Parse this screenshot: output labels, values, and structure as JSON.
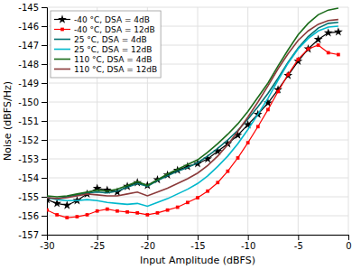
{
  "chart_data": {
    "type": "line",
    "x_label": "Input Amplitude (dBFS)",
    "y_label": "Noise (dBFS/Hz)",
    "x": [
      -30,
      -29,
      -28,
      -27,
      -26,
      -25,
      -24,
      -23,
      -22,
      -21,
      -20,
      -19,
      -18,
      -17,
      -16,
      -15,
      -14,
      -13,
      -12,
      -11,
      -10,
      -9,
      -8,
      -7,
      -6,
      -5,
      -4,
      -3,
      -2,
      -1
    ],
    "xlim": [
      -30,
      0
    ],
    "ylim": [
      -157,
      -145
    ],
    "xticks": [
      -30,
      -25,
      -20,
      -15,
      -10,
      -5,
      0
    ],
    "yticks": [
      -157,
      -156,
      -155,
      -154,
      -153,
      -152,
      -151,
      -150,
      -149,
      -148,
      -147,
      -146,
      -145
    ],
    "grid": true,
    "legend": "upper left",
    "series": [
      {
        "name": "-40 °C, DSA = 4dB",
        "color": "#000000",
        "marker": "star",
        "line_style": "solid",
        "values": [
          -155.15,
          -155.35,
          -155.45,
          -155.2,
          -154.85,
          -154.55,
          -154.65,
          -154.75,
          -154.45,
          -154.25,
          -154.4,
          -154.1,
          -153.85,
          -153.6,
          -153.4,
          -153.25,
          -153.0,
          -152.6,
          -152.2,
          -151.75,
          -151.2,
          -150.65,
          -150.05,
          -149.35,
          -148.6,
          -147.85,
          -147.2,
          -146.7,
          -146.35,
          -146.3
        ]
      },
      {
        "name": "-40 °C, DSA = 12dB",
        "color": "#ff0000",
        "marker": "square",
        "line_style": "solid",
        "values": [
          -155.7,
          -155.95,
          -156.1,
          -156.05,
          -155.95,
          -155.75,
          -155.65,
          -155.75,
          -155.8,
          -155.85,
          -155.95,
          -155.85,
          -155.7,
          -155.55,
          -155.3,
          -155.05,
          -154.7,
          -154.25,
          -153.65,
          -152.95,
          -152.15,
          -151.3,
          -150.4,
          -149.45,
          -148.55,
          -147.75,
          -147.2,
          -147.0,
          -147.4,
          -147.5
        ]
      },
      {
        "name": "25 °C, DSA = 4dB",
        "color": "#007070",
        "line_style": "solid",
        "values": [
          -155.05,
          -155.1,
          -155.0,
          -154.9,
          -154.8,
          -154.75,
          -154.8,
          -154.7,
          -154.5,
          -154.3,
          -154.45,
          -154.15,
          -153.9,
          -153.65,
          -153.45,
          -153.2,
          -152.85,
          -152.45,
          -152.0,
          -151.5,
          -150.9,
          -150.25,
          -149.55,
          -148.75,
          -147.9,
          -147.15,
          -146.55,
          -146.1,
          -145.85,
          -145.8
        ]
      },
      {
        "name": "25 °C, DSA = 12dB",
        "color": "#00b8cc",
        "line_style": "solid",
        "values": [
          -155.05,
          -155.15,
          -155.2,
          -155.2,
          -155.15,
          -155.2,
          -155.3,
          -155.35,
          -155.4,
          -155.35,
          -155.5,
          -155.3,
          -155.1,
          -154.85,
          -154.6,
          -154.3,
          -153.9,
          -153.4,
          -152.85,
          -152.2,
          -151.45,
          -150.65,
          -149.8,
          -148.85,
          -147.95,
          -147.2,
          -146.65,
          -146.25,
          -146.05,
          -146.0
        ]
      },
      {
        "name": "110 °C, DSA = 4dB",
        "color": "#1a6b1a",
        "line_style": "solid",
        "values": [
          -154.95,
          -155.0,
          -154.95,
          -154.85,
          -154.75,
          -154.65,
          -154.7,
          -154.6,
          -154.4,
          -154.2,
          -154.4,
          -154.1,
          -153.8,
          -153.55,
          -153.3,
          -153.05,
          -152.65,
          -152.2,
          -151.7,
          -151.15,
          -150.5,
          -149.75,
          -149.0,
          -148.1,
          -147.25,
          -146.45,
          -145.85,
          -145.4,
          -145.15,
          -145.05
        ]
      },
      {
        "name": "110 °C, DSA = 12dB",
        "color": "#8b3a3a",
        "line_style": "solid",
        "values": [
          -155.05,
          -155.1,
          -155.05,
          -154.95,
          -154.85,
          -154.9,
          -154.95,
          -154.95,
          -154.85,
          -154.75,
          -154.95,
          -154.75,
          -154.55,
          -154.3,
          -154.05,
          -153.75,
          -153.35,
          -152.85,
          -152.25,
          -151.55,
          -150.8,
          -150.0,
          -149.15,
          -148.25,
          -147.45,
          -146.75,
          -146.25,
          -145.9,
          -145.7,
          -145.65
        ]
      }
    ]
  }
}
